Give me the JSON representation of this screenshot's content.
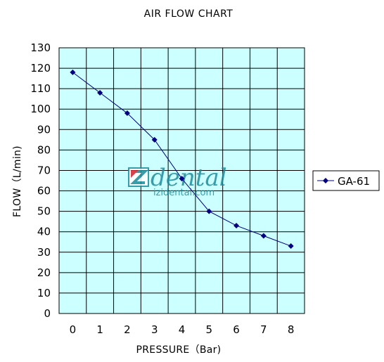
{
  "chart_data": {
    "type": "line",
    "title": "AIR FLOW CHART",
    "xlabel": "PRESSURE（Bar)",
    "ylabel": "FLOW（L/min)",
    "x": [
      0,
      1,
      2,
      3,
      4,
      5,
      6,
      7,
      8
    ],
    "xlim": [
      -0.5,
      8.5
    ],
    "ylim": [
      0,
      130
    ],
    "ytick_step": 10,
    "x_ticks": [
      "0",
      "1",
      "2",
      "3",
      "4",
      "5",
      "6",
      "7",
      "8"
    ],
    "y_ticks": [
      "0",
      "10",
      "20",
      "30",
      "40",
      "50",
      "60",
      "70",
      "80",
      "90",
      "100",
      "110",
      "120",
      "130"
    ],
    "grid": true,
    "legend_position": "right",
    "series": [
      {
        "name": "GA-61",
        "values": [
          118,
          108,
          98,
          85,
          66,
          50,
          43,
          38,
          33
        ],
        "color": "#000080",
        "marker": "diamond"
      }
    ]
  },
  "watermark": {
    "brand": "IZI dental",
    "url": "izidental.com"
  },
  "colors": {
    "plot_background": "#ccffff",
    "gridline": "#000000",
    "series_line": "#000080",
    "watermark_teal": "#1f8d9d",
    "watermark_red": "#d9232d"
  }
}
